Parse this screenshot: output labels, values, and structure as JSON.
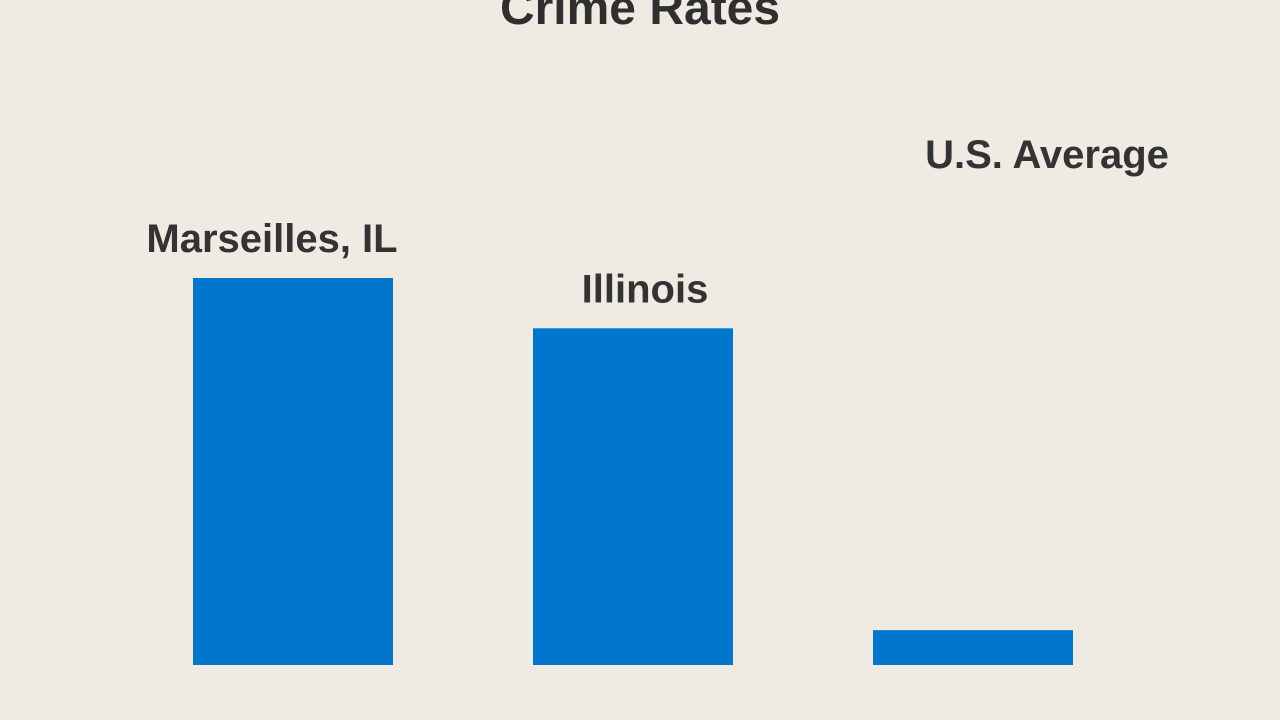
{
  "chart_data": {
    "type": "bar",
    "title": "Crime Rates",
    "categories": [
      "Marseilles, IL",
      "Illinois",
      "U.S. Average"
    ],
    "values": [
      100,
      87,
      9
    ],
    "ylim": [
      0,
      100
    ],
    "xlabel": "",
    "ylabel": "",
    "grid": false,
    "bar_color": "#0077cc",
    "background_color": "#efebe3",
    "text_color": "#333333"
  }
}
